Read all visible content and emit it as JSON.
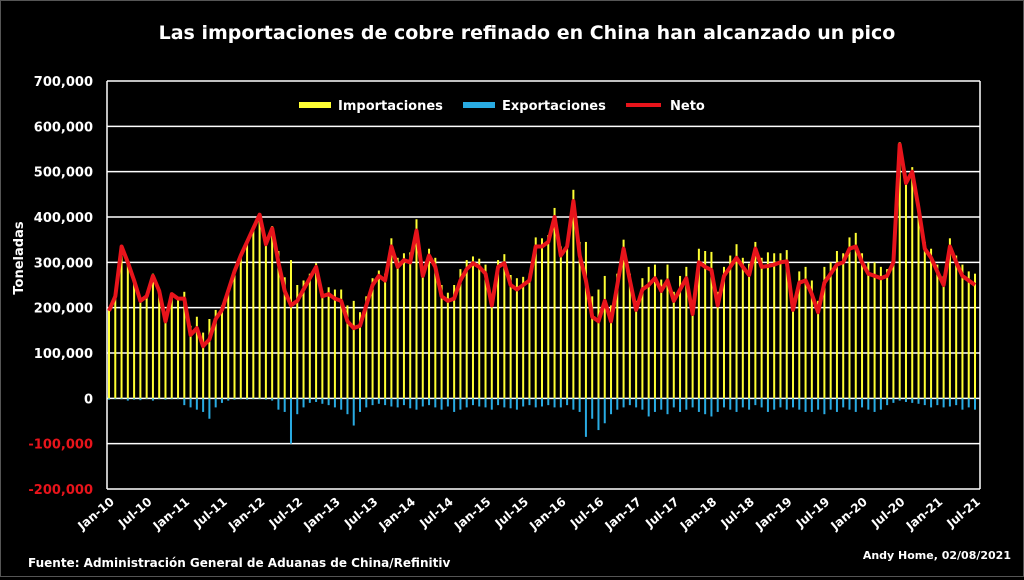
{
  "chart_data": {
    "type": "bar+line",
    "title": "Las  importaciones de cobre refinado en China han alcanzado un pico",
    "ylabel": "Toneladas",
    "xlabel": "",
    "ylim": [
      -200000,
      700000
    ],
    "yticks": [
      700000,
      600000,
      500000,
      400000,
      300000,
      200000,
      100000,
      0,
      -100000,
      -200000
    ],
    "ytick_labels": [
      "700,000",
      "600,000",
      "500,000",
      "400,000",
      "300,000",
      "200,000",
      "100,000",
      "0",
      "-100,000",
      "-200,000"
    ],
    "xtick_labels": [
      "Jan-10",
      "Jul-10",
      "Jan-11",
      "Jul-11",
      "Jan-12",
      "Jul-12",
      "Jan-13",
      "Jul-13",
      "Jan-14",
      "Jul-14",
      "Jan-15",
      "Jul-15",
      "Jan-16",
      "Jul-16",
      "Jan-17",
      "Jul-17",
      "Jan-18",
      "Jul-18",
      "Jan-19",
      "Jul-19",
      "Jan-20",
      "Jul-20",
      "Jan-21",
      "Jul-21"
    ],
    "x_start": "Jan-10",
    "x_end": "Jul-21",
    "x_frequency": "monthly",
    "grid": true,
    "legend": "top-center",
    "series": [
      {
        "name": "Importaciones",
        "type": "bar",
        "color": "#ffff33",
        "values": [
          196000,
          227000,
          337000,
          305000,
          263000,
          219000,
          227000,
          275000,
          239000,
          173000,
          232000,
          222000,
          235000,
          160000,
          180000,
          145000,
          175000,
          195000,
          205000,
          242000,
          283000,
          317000,
          348000,
          377000,
          407000,
          343000,
          380000,
          325000,
          267000,
          305000,
          250000,
          260000,
          275000,
          298000,
          237000,
          245000,
          240000,
          240000,
          205000,
          215000,
          190000,
          225000,
          265000,
          282000,
          275000,
          353000,
          310000,
          320000,
          322000,
          395000,
          288000,
          330000,
          310000,
          250000,
          233000,
          250000,
          285000,
          305000,
          313000,
          308000,
          295000,
          230000,
          305000,
          318000,
          272000,
          265000,
          268000,
          275000,
          355000,
          353000,
          360000,
          420000,
          335000,
          350000,
          460000,
          345000,
          345000,
          225000,
          240000,
          270000,
          205000,
          275000,
          350000,
          275000,
          215000,
          265000,
          290000,
          295000,
          262000,
          295000,
          235000,
          270000,
          290000,
          206000,
          330000,
          325000,
          323000,
          235000,
          290000,
          315000,
          340000,
          310000,
          297000,
          345000,
          310000,
          322000,
          320000,
          320000,
          327000,
          215000,
          280000,
          290000,
          260000,
          215000,
          290000,
          300000,
          325000,
          320000,
          355000,
          365000,
          320000,
          300000,
          300000,
          290000,
          285000,
          310000,
          565000,
          483000,
          510000,
          432000,
          345000,
          330000,
          295000,
          270000,
          353000,
          315000,
          295000,
          280000,
          275000
        ]
      },
      {
        "name": "Exportaciones",
        "type": "bar",
        "color": "#29abe2",
        "values": [
          -3000,
          -2000,
          -2000,
          -5000,
          -3000,
          -4000,
          -2000,
          -5000,
          -2000,
          -3000,
          -2000,
          -2000,
          -15000,
          -20000,
          -25000,
          -30000,
          -45000,
          -20000,
          -10000,
          -5000,
          -3000,
          -2000,
          -3000,
          -2000,
          -2000,
          -3000,
          -5000,
          -25000,
          -30000,
          -100000,
          -35000,
          -20000,
          -10000,
          -8000,
          -12000,
          -15000,
          -20000,
          -25000,
          -35000,
          -60000,
          -30000,
          -20000,
          -15000,
          -12000,
          -15000,
          -18000,
          -20000,
          -15000,
          -22000,
          -25000,
          -18000,
          -15000,
          -20000,
          -25000,
          -18000,
          -30000,
          -25000,
          -20000,
          -15000,
          -18000,
          -20000,
          -25000,
          -15000,
          -20000,
          -22000,
          -25000,
          -18000,
          -15000,
          -20000,
          -18000,
          -15000,
          -20000,
          -20000,
          -15000,
          -25000,
          -30000,
          -85000,
          -45000,
          -70000,
          -55000,
          -35000,
          -25000,
          -20000,
          -15000,
          -20000,
          -25000,
          -40000,
          -30000,
          -25000,
          -35000,
          -20000,
          -30000,
          -25000,
          -20000,
          -30000,
          -35000,
          -40000,
          -30000,
          -20000,
          -25000,
          -30000,
          -20000,
          -25000,
          -15000,
          -20000,
          -30000,
          -25000,
          -20000,
          -25000,
          -20000,
          -25000,
          -30000,
          -30000,
          -25000,
          -35000,
          -25000,
          -30000,
          -20000,
          -25000,
          -30000,
          -20000,
          -25000,
          -30000,
          -25000,
          -15000,
          -10000,
          -5000,
          -8000,
          -10000,
          -12000,
          -15000,
          -20000,
          -15000,
          -20000,
          -18000,
          -15000,
          -25000,
          -20000,
          -25000
        ]
      },
      {
        "name": "Neto",
        "type": "line",
        "color": "#e8141b",
        "values": [
          193000,
          225000,
          335000,
          300000,
          260000,
          215000,
          225000,
          270000,
          237000,
          170000,
          230000,
          220000,
          220000,
          140000,
          155000,
          115000,
          130000,
          175000,
          195000,
          237000,
          280000,
          315000,
          345000,
          375000,
          405000,
          340000,
          375000,
          300000,
          237000,
          205000,
          215000,
          240000,
          265000,
          290000,
          225000,
          230000,
          220000,
          215000,
          170000,
          155000,
          160000,
          205000,
          250000,
          270000,
          260000,
          335000,
          290000,
          305000,
          300000,
          370000,
          270000,
          315000,
          290000,
          225000,
          215000,
          220000,
          260000,
          285000,
          298000,
          290000,
          275000,
          205000,
          290000,
          298000,
          250000,
          240000,
          250000,
          260000,
          335000,
          335000,
          345000,
          400000,
          315000,
          335000,
          435000,
          315000,
          260000,
          180000,
          170000,
          215000,
          170000,
          250000,
          330000,
          260000,
          195000,
          240000,
          250000,
          265000,
          237000,
          260000,
          215000,
          240000,
          265000,
          186000,
          300000,
          290000,
          283000,
          205000,
          270000,
          290000,
          310000,
          290000,
          272000,
          330000,
          290000,
          292000,
          295000,
          300000,
          302000,
          195000,
          255000,
          260000,
          230000,
          190000,
          255000,
          275000,
          295000,
          300000,
          330000,
          335000,
          300000,
          275000,
          270000,
          265000,
          270000,
          300000,
          560000,
          475000,
          500000,
          420000,
          330000,
          310000,
          280000,
          250000,
          335000,
          300000,
          270000,
          260000,
          250000
        ]
      }
    ]
  },
  "footer": {
    "source": "Fuente: Administración General de Aduanas de China/Refinitiv",
    "credit": "Andy Home, 02/08/2021"
  },
  "colors": {
    "background": "#000000",
    "text": "#ffffff",
    "negative_tick": "#e8141b",
    "grid": "#ffffff"
  }
}
